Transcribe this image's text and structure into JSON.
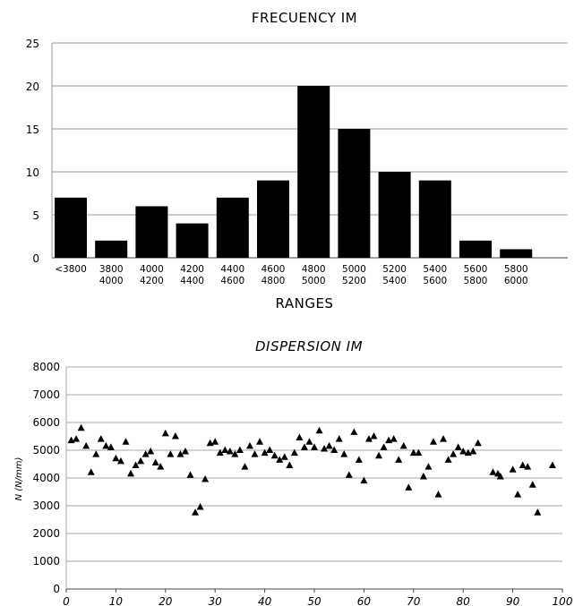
{
  "chart_data": [
    {
      "type": "bar",
      "title": "FRECUENCY IM",
      "xlabel": "RANGES",
      "ylabel": "",
      "ylim": [
        0,
        25
      ],
      "yticks": [
        "0",
        "5",
        "10",
        "15",
        "20",
        "25"
      ],
      "categories": [
        [
          "<3800"
        ],
        [
          "3800",
          "4000"
        ],
        [
          "4000",
          "4200"
        ],
        [
          "4200",
          "4400"
        ],
        [
          "4400",
          "4600"
        ],
        [
          "4600",
          "4800"
        ],
        [
          "4800",
          "5000"
        ],
        [
          "5000",
          "5200"
        ],
        [
          "5200",
          "5400"
        ],
        [
          "5400",
          "5600"
        ],
        [
          "5600",
          "5800"
        ],
        [
          "5800",
          "6000"
        ]
      ],
      "values": [
        7,
        2,
        6,
        4,
        7,
        9,
        20,
        15,
        10,
        9,
        2,
        1
      ],
      "bar_color": "#000000",
      "grid": true
    },
    {
      "type": "scatter",
      "title": "DISPERSION IM",
      "xlabel": "",
      "ylabel": "N (N/mm)",
      "xlim": [
        0,
        100
      ],
      "ylim": [
        0,
        8000
      ],
      "xticks": [
        "0",
        "10",
        "20",
        "30",
        "40",
        "50",
        "60",
        "70",
        "80",
        "90",
        "100"
      ],
      "yticks": [
        "0",
        "1000",
        "2000",
        "3000",
        "4000",
        "5000",
        "6000",
        "7000",
        "8000"
      ],
      "marker": "triangle",
      "grid": true,
      "points": [
        [
          1,
          5350
        ],
        [
          2,
          5400
        ],
        [
          3,
          5800
        ],
        [
          4,
          5150
        ],
        [
          5,
          4200
        ],
        [
          6,
          4850
        ],
        [
          7,
          5400
        ],
        [
          8,
          5150
        ],
        [
          9,
          5100
        ],
        [
          10,
          4700
        ],
        [
          11,
          4600
        ],
        [
          12,
          5300
        ],
        [
          13,
          4150
        ],
        [
          14,
          4450
        ],
        [
          15,
          4600
        ],
        [
          16,
          4850
        ],
        [
          17,
          4950
        ],
        [
          18,
          4550
        ],
        [
          19,
          4400
        ],
        [
          20,
          5600
        ],
        [
          21,
          4850
        ],
        [
          22,
          5500
        ],
        [
          23,
          4850
        ],
        [
          24,
          4950
        ],
        [
          25,
          4100
        ],
        [
          26,
          2750
        ],
        [
          27,
          2950
        ],
        [
          28,
          3950
        ],
        [
          29,
          5250
        ],
        [
          30,
          5300
        ],
        [
          31,
          4900
        ],
        [
          32,
          5000
        ],
        [
          33,
          4950
        ],
        [
          34,
          4850
        ],
        [
          35,
          5000
        ],
        [
          36,
          4400
        ],
        [
          37,
          5150
        ],
        [
          38,
          4850
        ],
        [
          39,
          5300
        ],
        [
          40,
          4900
        ],
        [
          41,
          5000
        ],
        [
          42,
          4800
        ],
        [
          43,
          4650
        ],
        [
          44,
          4750
        ],
        [
          45,
          4450
        ],
        [
          46,
          4900
        ],
        [
          47,
          5450
        ],
        [
          48,
          5100
        ],
        [
          49,
          5300
        ],
        [
          50,
          5100
        ],
        [
          51,
          5700
        ],
        [
          52,
          5050
        ],
        [
          53,
          5150
        ],
        [
          54,
          5000
        ],
        [
          55,
          5400
        ],
        [
          56,
          4850
        ],
        [
          57,
          4100
        ],
        [
          58,
          5650
        ],
        [
          59,
          4650
        ],
        [
          60,
          3900
        ],
        [
          61,
          5400
        ],
        [
          62,
          5500
        ],
        [
          63,
          4800
        ],
        [
          64,
          5100
        ],
        [
          65,
          5350
        ],
        [
          66,
          5400
        ],
        [
          67,
          4650
        ],
        [
          68,
          5150
        ],
        [
          69,
          3650
        ],
        [
          70,
          4900
        ],
        [
          71,
          4900
        ],
        [
          72,
          4050
        ],
        [
          73,
          4400
        ],
        [
          74,
          5300
        ],
        [
          75,
          3400
        ],
        [
          76,
          5400
        ],
        [
          77,
          4650
        ],
        [
          78,
          4850
        ],
        [
          79,
          5100
        ],
        [
          80,
          4950
        ],
        [
          81,
          4900
        ],
        [
          82,
          4950
        ],
        [
          83,
          5250
        ],
        [
          86,
          4200
        ],
        [
          87,
          4150
        ],
        [
          87.5,
          4050
        ],
        [
          90,
          4300
        ],
        [
          91,
          3400
        ],
        [
          92,
          4450
        ],
        [
          93,
          4400
        ],
        [
          94,
          3750
        ],
        [
          95,
          2750
        ],
        [
          98,
          4450
        ]
      ]
    }
  ]
}
